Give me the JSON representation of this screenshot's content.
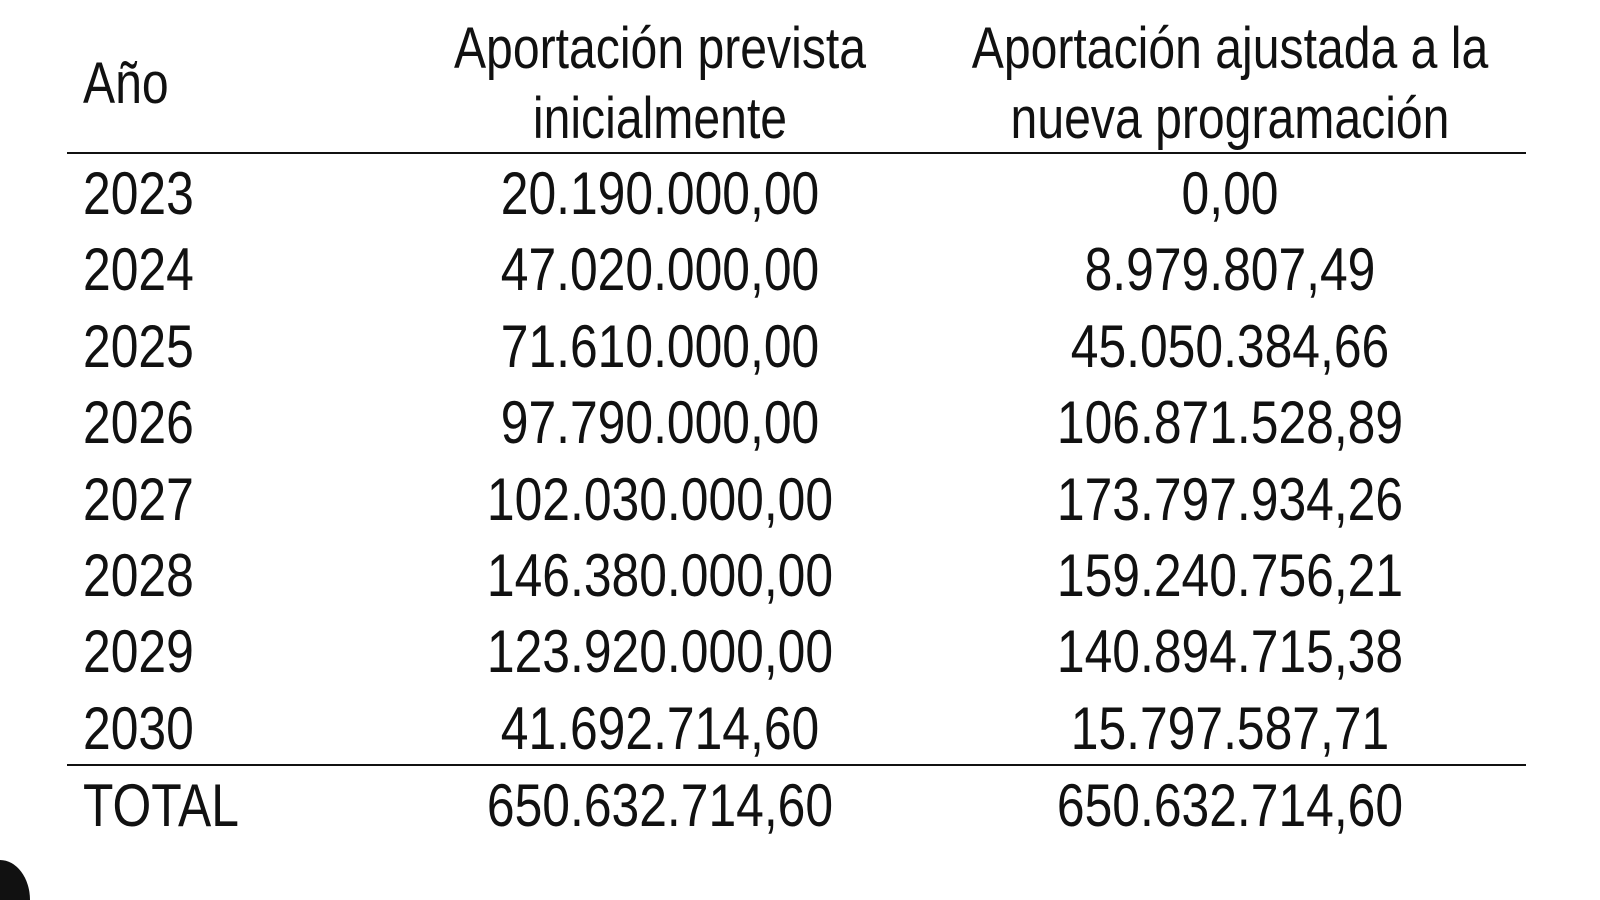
{
  "table": {
    "header": [
      "Año",
      "Aportación prevista inicialmente",
      "Aportación ajustada a la nueva programación"
    ],
    "rows": [
      [
        "2023",
        "20.190.000,00",
        "0,00"
      ],
      [
        "2024",
        "47.020.000,00",
        "8.979.807,49"
      ],
      [
        "2025",
        "71.610.000,00",
        "45.050.384,66"
      ],
      [
        "2026",
        "97.790.000,00",
        "106.871.528,89"
      ],
      [
        "2027",
        "102.030.000,00",
        "173.797.934,26"
      ],
      [
        "2028",
        "146.380.000,00",
        "159.240.756,21"
      ],
      [
        "2029",
        "123.920.000,00",
        "140.894.715,38"
      ],
      [
        "2030",
        "41.692.714,60",
        "15.797.587,71"
      ]
    ],
    "total": [
      "TOTAL",
      "650.632.714,60",
      "650.632.714,60"
    ]
  }
}
